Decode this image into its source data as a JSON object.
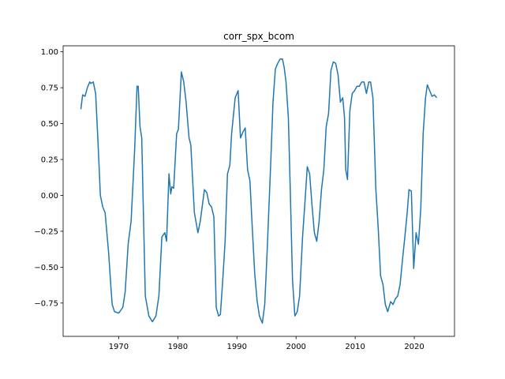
{
  "chart_data": {
    "type": "line",
    "title": "corr_spx_bcom",
    "x": [
      1963.6,
      1963.9,
      1964.3,
      1964.7,
      1965.1,
      1965.3,
      1965.7,
      1966.1,
      1966.5,
      1966.9,
      1967.3,
      1967.7,
      1968.3,
      1968.7,
      1968.9,
      1969.3,
      1970.0,
      1970.7,
      1971.1,
      1971.6,
      1972.1,
      1972.7,
      1973.1,
      1973.3,
      1973.6,
      1973.9,
      1974.1,
      1974.5,
      1975.1,
      1975.7,
      1976.3,
      1976.8,
      1977.3,
      1977.8,
      1978.1,
      1978.5,
      1978.8,
      1979.0,
      1979.3,
      1979.8,
      1980.1,
      1980.6,
      1981.0,
      1981.4,
      1981.9,
      1982.2,
      1982.8,
      1983.4,
      1983.8,
      1984.5,
      1984.9,
      1985.3,
      1985.7,
      1986.1,
      1986.5,
      1986.9,
      1987.2,
      1987.6,
      1988.0,
      1988.4,
      1988.8,
      1989.1,
      1989.7,
      1990.2,
      1990.6,
      1991.0,
      1991.4,
      1991.8,
      1992.2,
      1992.6,
      1993.0,
      1993.4,
      1993.8,
      1994.3,
      1994.7,
      1995.1,
      1995.7,
      1996.1,
      1996.5,
      1996.9,
      1997.3,
      1997.7,
      1998.0,
      1998.3,
      1998.7,
      1999.0,
      1999.4,
      1999.8,
      2000.2,
      2000.6,
      2001.1,
      2001.5,
      2001.9,
      2002.3,
      2002.7,
      2003.1,
      2003.5,
      2003.9,
      2004.3,
      2004.7,
      2005.1,
      2005.5,
      2005.9,
      2006.3,
      2006.7,
      2007.1,
      2007.5,
      2007.9,
      2008.2,
      2008.4,
      2008.7,
      2009.1,
      2009.5,
      2009.9,
      2010.3,
      2010.7,
      2011.1,
      2011.5,
      2011.9,
      2012.3,
      2012.6,
      2013.0,
      2013.5,
      2013.9,
      2014.3,
      2014.7,
      2015.1,
      2015.5,
      2016.0,
      2016.4,
      2016.8,
      2017.2,
      2017.6,
      2018.0,
      2018.4,
      2018.8,
      2019.1,
      2019.5,
      2019.9,
      2020.3,
      2020.7,
      2021.1,
      2021.5,
      2021.9,
      2022.2,
      2022.6,
      2023.0,
      2023.4,
      2023.8
    ],
    "series": [
      {
        "name": "corr_spx_bcom",
        "color": "#1f77b4",
        "values": [
          0.6,
          0.7,
          0.69,
          0.75,
          0.79,
          0.78,
          0.79,
          0.71,
          0.37,
          0.0,
          -0.08,
          -0.12,
          -0.4,
          -0.65,
          -0.76,
          -0.81,
          -0.82,
          -0.78,
          -0.67,
          -0.34,
          -0.18,
          0.32,
          0.76,
          0.76,
          0.48,
          0.4,
          0.02,
          -0.7,
          -0.84,
          -0.88,
          -0.84,
          -0.7,
          -0.29,
          -0.26,
          -0.32,
          0.15,
          0.01,
          0.06,
          0.05,
          0.43,
          0.46,
          0.86,
          0.79,
          0.65,
          0.4,
          0.35,
          -0.12,
          -0.26,
          -0.18,
          0.04,
          0.02,
          -0.06,
          -0.08,
          -0.15,
          -0.78,
          -0.84,
          -0.83,
          -0.59,
          -0.32,
          0.15,
          0.21,
          0.43,
          0.68,
          0.73,
          0.4,
          0.44,
          0.47,
          0.18,
          0.1,
          -0.23,
          -0.54,
          -0.73,
          -0.84,
          -0.89,
          -0.76,
          -0.4,
          0.21,
          0.65,
          0.88,
          0.92,
          0.95,
          0.95,
          0.89,
          0.79,
          0.54,
          0.07,
          -0.59,
          -0.84,
          -0.81,
          -0.7,
          -0.29,
          -0.05,
          0.2,
          0.15,
          -0.07,
          -0.26,
          -0.32,
          -0.18,
          0.04,
          0.18,
          0.48,
          0.57,
          0.87,
          0.93,
          0.92,
          0.84,
          0.65,
          0.68,
          0.54,
          0.18,
          0.11,
          0.59,
          0.71,
          0.73,
          0.76,
          0.76,
          0.79,
          0.79,
          0.71,
          0.79,
          0.79,
          0.68,
          0.04,
          -0.23,
          -0.56,
          -0.62,
          -0.76,
          -0.81,
          -0.74,
          -0.76,
          -0.72,
          -0.7,
          -0.62,
          -0.45,
          -0.29,
          -0.12,
          0.04,
          0.03,
          -0.51,
          -0.26,
          -0.34,
          -0.09,
          0.43,
          0.68,
          0.77,
          0.73,
          0.69,
          0.7,
          0.68
        ]
      }
    ],
    "xlim": [
      1960.6,
      2026.8
    ],
    "xticks": [
      1970,
      1980,
      1990,
      2000,
      2010,
      2020
    ],
    "ylim": [
      -0.982,
      1.042
    ],
    "yticks": [
      {
        "value": -0.75,
        "label": "−0.75"
      },
      {
        "value": -0.5,
        "label": "−0.50"
      },
      {
        "value": -0.25,
        "label": "−0.25"
      },
      {
        "value": 0,
        "label": "0.00"
      },
      {
        "value": 0.25,
        "label": "0.25"
      },
      {
        "value": 0.5,
        "label": "0.50"
      },
      {
        "value": 0.75,
        "label": "0.75"
      },
      {
        "value": 1,
        "label": "1.00"
      }
    ],
    "grid": false
  }
}
